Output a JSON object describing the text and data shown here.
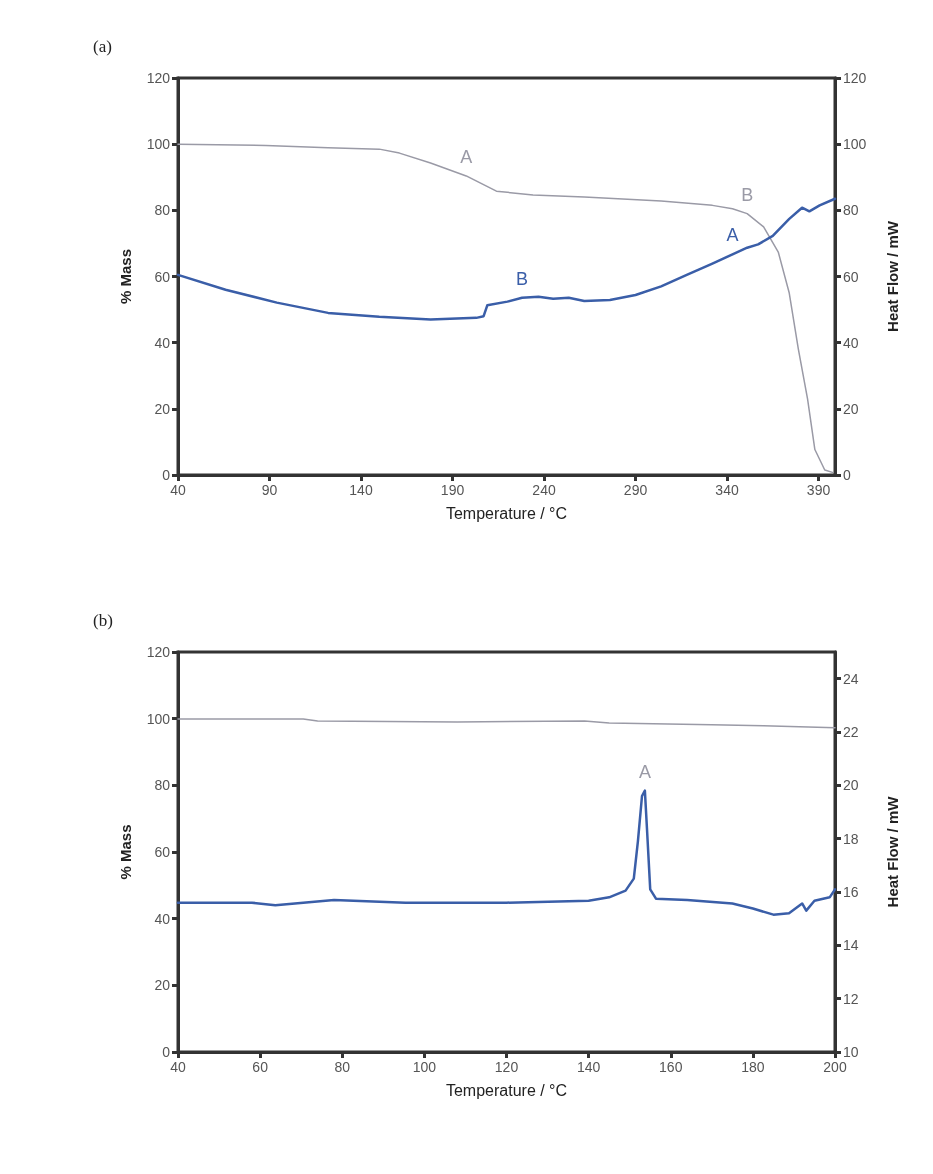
{
  "chart_data": [
    {
      "type": "line",
      "title": "(a)",
      "xlabel": "Temperature / °C",
      "ylabel": "% Mass",
      "y2label": "Heat Flow / mW",
      "xlim": [
        40,
        399
      ],
      "xticks": [
        40,
        90,
        140,
        190,
        240,
        290,
        340,
        390
      ],
      "ylim": [
        0,
        120
      ],
      "yticks": [
        0,
        20,
        40,
        60,
        80,
        100,
        120
      ],
      "y2lim": [
        0,
        120
      ],
      "y2ticks": [
        0,
        20,
        40,
        60,
        80,
        100,
        120
      ],
      "grid": false,
      "marker": "none",
      "series": [
        {
          "color": "#9a9aa6",
          "x": [
            40,
            88,
            122,
            150,
            161,
            178,
            197.5,
            214,
            234,
            262,
            304,
            332,
            343,
            351,
            360,
            368,
            374,
            379,
            384,
            388,
            393.4,
            397.6
          ],
          "values": [
            100,
            99.6,
            98.9,
            98.5,
            97.3,
            94.3,
            90.4,
            85.8,
            84.6,
            84,
            82.8,
            81.5,
            80.5,
            79,
            75,
            67.4,
            55,
            38,
            23,
            7.7,
            1.5,
            0.8
          ]
        },
        {
          "color": "#3a5ea8",
          "axis": "y2",
          "x": [
            40,
            66,
            94,
            122,
            150,
            178,
            203,
            207,
            209,
            220,
            228,
            237,
            245,
            253.5,
            262,
            276,
            290,
            304,
            318,
            332,
            343,
            351,
            357,
            365,
            374,
            381,
            385,
            390.6,
            399
          ],
          "values": [
            60.5,
            56,
            52.1,
            49,
            47.8,
            47,
            47.5,
            48,
            51.3,
            52.4,
            53.6,
            53.9,
            53.3,
            53.6,
            52.6,
            52.9,
            54.4,
            57,
            60.5,
            63.9,
            66.7,
            68.7,
            69.7,
            72.3,
            77.4,
            80.8,
            79.7,
            81.5,
            83.5
          ]
        }
      ],
      "annotations": [
        {
          "text": "A",
          "x": 197.5,
          "y": 90.4
        },
        {
          "text": "B",
          "x": 351,
          "y": 79
        },
        {
          "text": "B",
          "x": 228,
          "y": 53.6
        },
        {
          "text": "A",
          "x": 343,
          "y": 66.7
        }
      ]
    },
    {
      "type": "line",
      "title": "(b)",
      "xlabel": "Temperature / °C",
      "ylabel": "% Mass",
      "y2label": "Heat Flow / mW",
      "xlim": [
        40,
        200
      ],
      "xticks": [
        40,
        60,
        80,
        100,
        120,
        140,
        160,
        180,
        200
      ],
      "ylim": [
        0,
        120
      ],
      "yticks": [
        0,
        20,
        40,
        60,
        80,
        100,
        120
      ],
      "y2lim": [
        10,
        25
      ],
      "y2ticks": [
        10,
        12,
        14,
        16,
        18,
        20,
        22,
        24
      ],
      "grid": false,
      "marker": "none",
      "series": [
        {
          "color": "#9a9aa6",
          "x": [
            40,
            70.5,
            74,
            108,
            139,
            145,
            170,
            182.6,
            200
          ],
          "values": [
            99.9,
            99.9,
            99.3,
            99,
            99.3,
            98.7,
            98.2,
            97.9,
            97.3
          ]
        },
        {
          "color": "#3a5ea8",
          "axis": "y2",
          "x": [
            40,
            58,
            63.7,
            78,
            95.4,
            120,
            140,
            145,
            149,
            151,
            152,
            153,
            153.7,
            154.2,
            155,
            156.4,
            164,
            175,
            180,
            185,
            188.8,
            192,
            193,
            195,
            198.7,
            200
          ],
          "values": [
            15.6,
            15.6,
            15.5,
            15.7,
            15.6,
            15.6,
            15.67,
            15.8,
            16.05,
            16.5,
            17.9,
            19.6,
            19.8,
            18.4,
            16.1,
            15.75,
            15.7,
            15.57,
            15.38,
            15.15,
            15.2,
            15.57,
            15.3,
            15.67,
            15.8,
            16.1
          ]
        }
      ],
      "annotations": [
        {
          "text": "A",
          "x": 153.7,
          "y": 78.4
        }
      ]
    }
  ]
}
